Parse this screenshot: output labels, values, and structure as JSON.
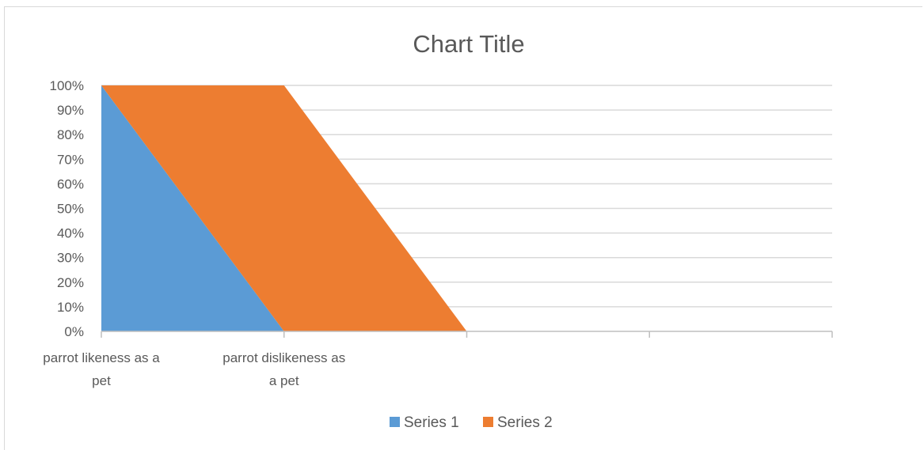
{
  "chart_data": {
    "type": "area",
    "stacking": "percent",
    "title": "Chart Title",
    "categories": [
      "parrot likeness as a pet",
      "parrot dislikeness as a pet",
      "",
      "",
      ""
    ],
    "category_lines": [
      [
        "parrot likeness as a",
        "pet"
      ],
      [
        "parrot dislikeness as",
        "a pet"
      ],
      [
        ""
      ],
      [
        ""
      ],
      [
        ""
      ]
    ],
    "y_ticks": [
      "0%",
      "10%",
      "20%",
      "30%",
      "40%",
      "50%",
      "60%",
      "70%",
      "80%",
      "90%",
      "100%"
    ],
    "ylim": [
      0,
      1
    ],
    "grid": true,
    "legend": "bottom",
    "series": [
      {
        "name": "Series 1",
        "color": "#5B9BD5",
        "values": [
          1,
          0,
          0,
          0,
          0
        ]
      },
      {
        "name": "Series 2",
        "color": "#ED7D31",
        "values": [
          0,
          1,
          0,
          0,
          0
        ]
      }
    ]
  },
  "colors": {
    "grid": "#d9d9d9",
    "axis": "#bfbfbf",
    "text": "#595959"
  }
}
